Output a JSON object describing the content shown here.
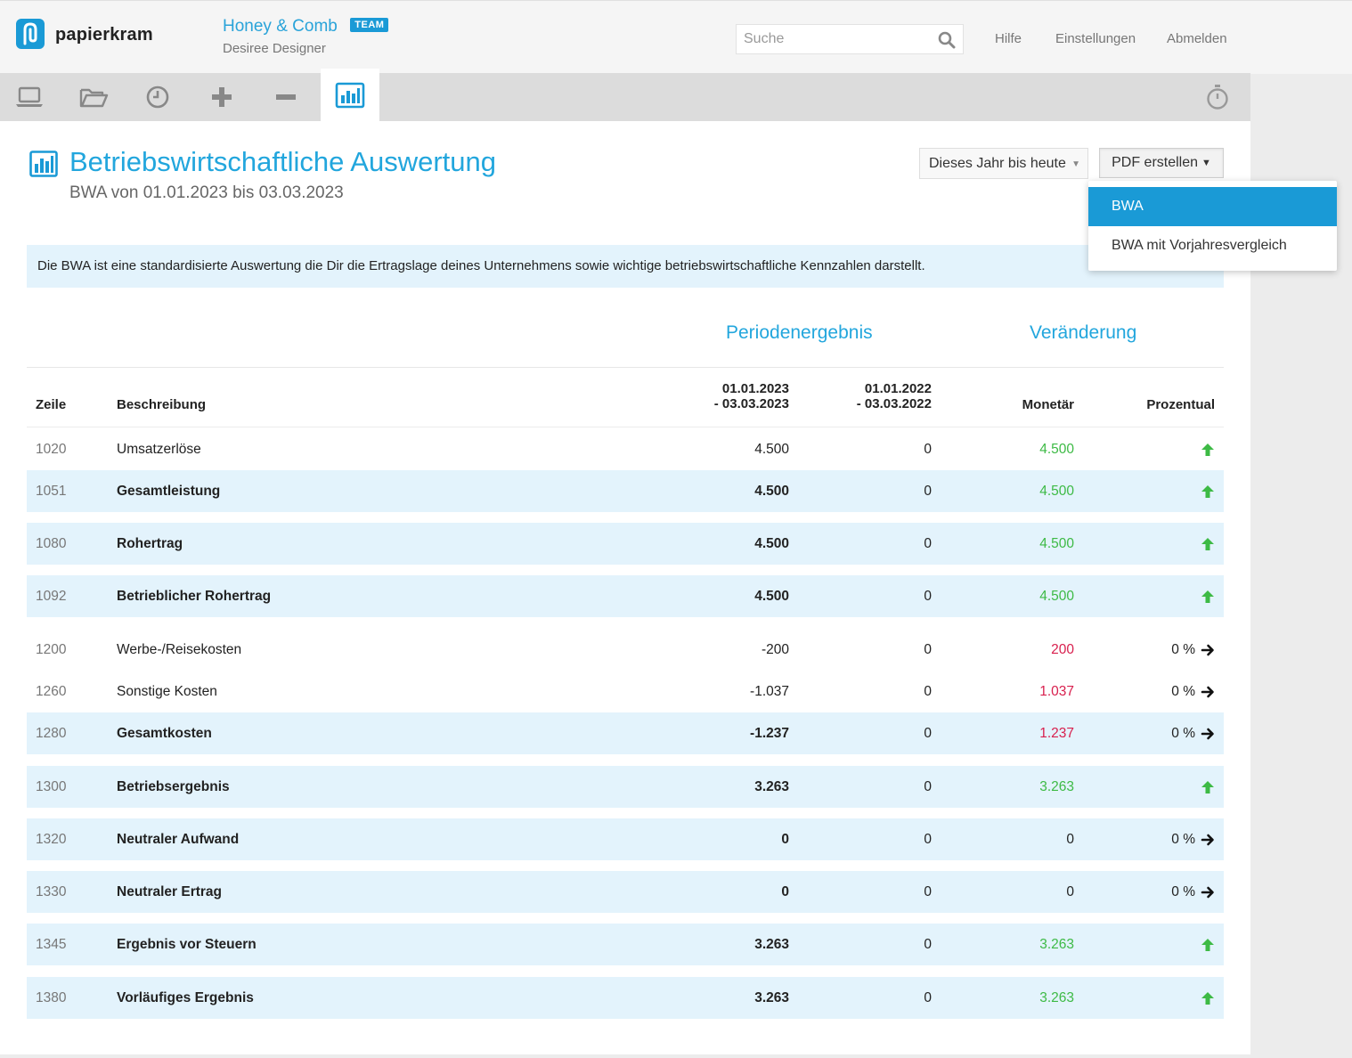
{
  "app": {
    "logo_text": "papierkram",
    "company": "Honey & Comb",
    "team_badge": "TEAM",
    "user": "Desiree Designer",
    "search_placeholder": "Suche",
    "links": [
      "Hilfe",
      "Einstellungen",
      "Abmelden"
    ]
  },
  "nav": {
    "items": [
      "laptop-icon",
      "folder-icon",
      "clock-icon",
      "plus-icon",
      "minus-icon",
      "chart-icon"
    ],
    "active": "chart-icon",
    "right_icon": "stopwatch-icon"
  },
  "page": {
    "title": "Betriebswirtschaftliche Auswertung",
    "subtitle": "BWA von 01.01.2023 bis 03.03.2023",
    "period_select": "Dieses Jahr bis heute",
    "pdf_button": "PDF erstellen",
    "dropdown": {
      "options": [
        "BWA",
        "BWA mit Vorjahresvergleich"
      ],
      "selected": "BWA"
    },
    "info": "Die BWA ist eine standardisierte Auswertung die Dir die Ertragslage deines Unternehmens sowie wichtige betriebswirtschaftliche Kennzahlen darstellt."
  },
  "table": {
    "groups": {
      "period": "Periodenergebnis",
      "change": "Veränderung"
    },
    "headers": {
      "zeile": "Zeile",
      "desc": "Beschreibung",
      "p1_line1": "01.01.2023",
      "p1_line2": "- 03.03.2023",
      "p2_line1": "01.01.2022",
      "p2_line2": "- 03.03.2022",
      "monetaer": "Monetär",
      "prozentual": "Prozentual"
    },
    "rows": [
      {
        "zeile": "1020",
        "desc": "Umsatzerlöse",
        "v1": "4.500",
        "v2": "0",
        "v3": "4.500",
        "pct": "",
        "trend": "up"
      },
      {
        "zeile": "1051",
        "desc": "Gesamtleistung",
        "v1": "4.500",
        "v2": "0",
        "v3": "4.500",
        "pct": "",
        "trend": "up"
      },
      {
        "zeile": "1080",
        "desc": "Rohertrag",
        "v1": "4.500",
        "v2": "0",
        "v3": "4.500",
        "pct": "",
        "trend": "up"
      },
      {
        "zeile": "1092",
        "desc": "Betrieblicher Rohertrag",
        "v1": "4.500",
        "v2": "0",
        "v3": "4.500",
        "pct": "",
        "trend": "up"
      },
      {
        "zeile": "1200",
        "desc": "Werbe-/Reisekosten",
        "v1": "-200",
        "v2": "0",
        "v3": "200",
        "pct": "0 %",
        "trend": "right"
      },
      {
        "zeile": "1260",
        "desc": "Sonstige Kosten",
        "v1": "-1.037",
        "v2": "0",
        "v3": "1.037",
        "pct": "0 %",
        "trend": "right"
      },
      {
        "zeile": "1280",
        "desc": "Gesamtkosten",
        "v1": "-1.237",
        "v2": "0",
        "v3": "1.237",
        "pct": "0 %",
        "trend": "right"
      },
      {
        "zeile": "1300",
        "desc": "Betriebsergebnis",
        "v1": "3.263",
        "v2": "0",
        "v3": "3.263",
        "pct": "",
        "trend": "up"
      },
      {
        "zeile": "1320",
        "desc": "Neutraler Aufwand",
        "v1": "0",
        "v2": "0",
        "v3": "0",
        "pct": "0 %",
        "trend": "right"
      },
      {
        "zeile": "1330",
        "desc": "Neutraler Ertrag",
        "v1": "0",
        "v2": "0",
        "v3": "0",
        "pct": "0 %",
        "trend": "right"
      },
      {
        "zeile": "1345",
        "desc": "Ergebnis vor Steuern",
        "v1": "3.263",
        "v2": "0",
        "v3": "3.263",
        "pct": "",
        "trend": "up"
      },
      {
        "zeile": "1380",
        "desc": "Vorläufiges Ergebnis",
        "v1": "3.263",
        "v2": "0",
        "v3": "3.263",
        "pct": "",
        "trend": "up"
      }
    ]
  },
  "colors": {
    "accent": "#22a6dd",
    "positive": "#3dba45",
    "negative": "#d8204e",
    "highlight_row": "#e3f3fc"
  }
}
